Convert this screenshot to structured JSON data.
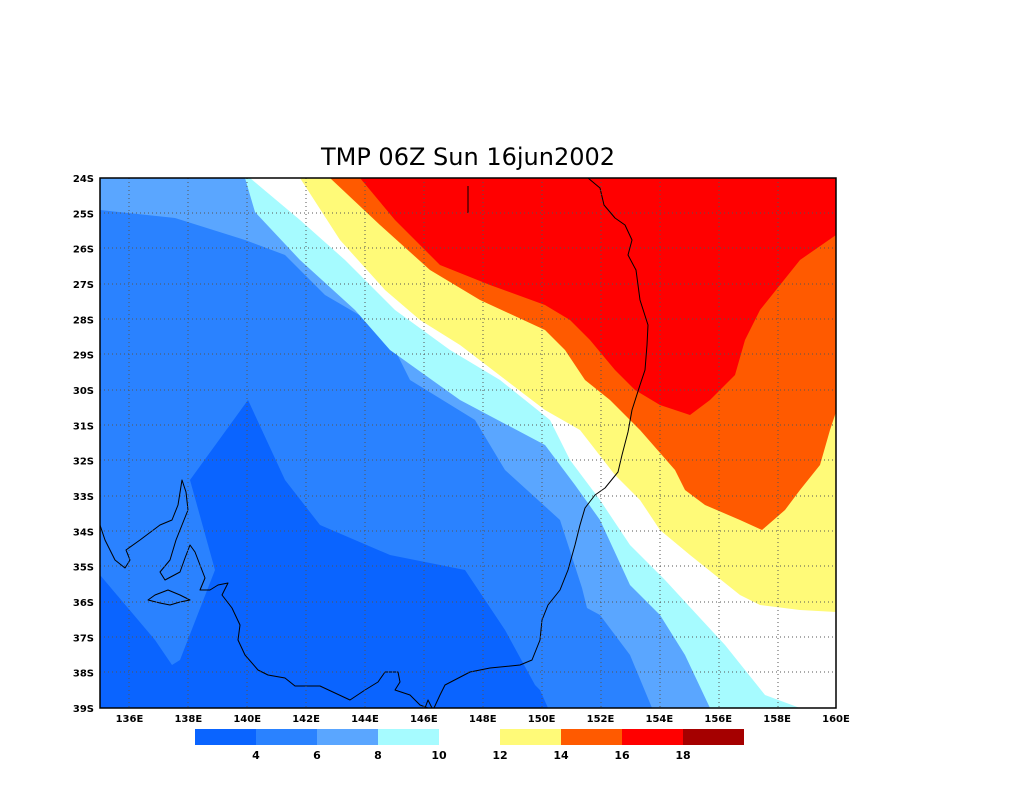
{
  "title": "TMP 06Z Sun 16jun2002",
  "colors": {
    "lt4": "#0a64ff",
    "c4_6": "#2a82ff",
    "c6_8": "#5aa6ff",
    "c8_10": "#a6fbff",
    "c10_12": "#ffffff",
    "c12_14": "#fffa78",
    "c14_16": "#ff5a00",
    "c16_18": "#ff0000",
    "gt18": "#a50000",
    "coastline": "#000000",
    "grid": "#555555"
  },
  "chart_data": {
    "type": "heatmap",
    "variable": "TMP",
    "title": "TMP 06Z Sun 16jun2002",
    "lon_range": [
      135,
      160
    ],
    "lat_range": [
      -39,
      -24
    ],
    "lon_ticks": [
      "136E",
      "138E",
      "140E",
      "142E",
      "144E",
      "146E",
      "148E",
      "150E",
      "152E",
      "154E",
      "156E",
      "158E",
      "160E"
    ],
    "lat_ticks": [
      "24S",
      "25S",
      "26S",
      "27S",
      "28S",
      "29S",
      "30S",
      "31S",
      "32S",
      "33S",
      "34S",
      "35S",
      "36S",
      "37S",
      "38S",
      "39S"
    ],
    "grid": true,
    "colorbar": {
      "labels": [
        "4",
        "6",
        "8",
        "10",
        "12",
        "14",
        "16",
        "18"
      ],
      "levels": [
        4,
        6,
        8,
        10,
        12,
        14,
        16,
        18
      ],
      "colors": [
        "#0a64ff",
        "#2a82ff",
        "#5aa6ff",
        "#a6fbff",
        "#ffffff",
        "#fffa78",
        "#ff5a00",
        "#ff0000",
        "#a50000"
      ]
    }
  }
}
